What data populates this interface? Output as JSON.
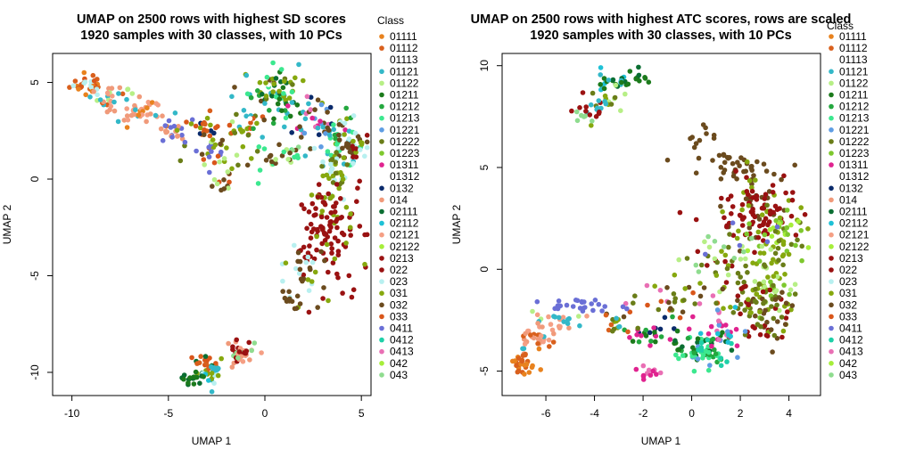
{
  "classes": [
    {
      "name": "01111",
      "color": "#e8821e"
    },
    {
      "name": "01112",
      "color": "#d9601d"
    },
    {
      "name": "01113",
      "color": "#ffffff"
    },
    {
      "name": "01121",
      "color": "#33b8c8"
    },
    {
      "name": "01122",
      "color": "#b7ef86"
    },
    {
      "name": "01211",
      "color": "#1b7a1b"
    },
    {
      "name": "01212",
      "color": "#24a83f"
    },
    {
      "name": "01213",
      "color": "#3ce88f"
    },
    {
      "name": "01221",
      "color": "#5f9de3"
    },
    {
      "name": "01222",
      "color": "#6a7d18"
    },
    {
      "name": "01223",
      "color": "#7ec82e"
    },
    {
      "name": "01311",
      "color": "#e0238f"
    },
    {
      "name": "01312",
      "color": "#ffffff"
    },
    {
      "name": "0132",
      "color": "#0a2a6b"
    },
    {
      "name": "014",
      "color": "#f09a7a"
    },
    {
      "name": "02111",
      "color": "#0a6e32"
    },
    {
      "name": "02112",
      "color": "#1ec1d6"
    },
    {
      "name": "02121",
      "color": "#f59f84"
    },
    {
      "name": "02122",
      "color": "#a6ee3a"
    },
    {
      "name": "0213",
      "color": "#9b1212"
    },
    {
      "name": "022",
      "color": "#991111"
    },
    {
      "name": "023",
      "color": "#b8f0f0"
    },
    {
      "name": "031",
      "color": "#86a80e"
    },
    {
      "name": "032",
      "color": "#6b4b1e"
    },
    {
      "name": "033",
      "color": "#d9561a"
    },
    {
      "name": "0411",
      "color": "#6a6fd6"
    },
    {
      "name": "0412",
      "color": "#1fd0a8"
    },
    {
      "name": "0413",
      "color": "#e96fb4"
    },
    {
      "name": "042",
      "color": "#a6ee3a"
    },
    {
      "name": "043",
      "color": "#8fdc8f"
    }
  ],
  "chart_data": [
    {
      "type": "scatter",
      "title": "UMAP on 2500 rows with highest SD scores",
      "subtitle": "1920 samples with 30 classes, with 10 PCs",
      "xlabel": "UMAP 1",
      "ylabel": "UMAP 2",
      "xlim": [
        -11,
        5.5
      ],
      "ylim": [
        -11.2,
        6.5
      ],
      "xticks": [
        -10,
        -5,
        0,
        5
      ],
      "yticks": [
        -10,
        -5,
        0,
        5
      ],
      "legend_title": "Class",
      "legend_position": "right",
      "clusters": [
        {
          "x": -9.2,
          "y": 4.9,
          "sx": 0.45,
          "sy": 0.3,
          "n": 30,
          "cls": [
            0,
            1,
            24,
            21
          ]
        },
        {
          "x": -8.0,
          "y": 4.2,
          "sx": 0.6,
          "sy": 0.3,
          "n": 30,
          "cls": [
            1,
            14,
            3,
            4,
            17
          ]
        },
        {
          "x": -6.5,
          "y": 3.4,
          "sx": 0.7,
          "sy": 0.3,
          "n": 35,
          "cls": [
            14,
            17,
            3,
            0
          ]
        },
        {
          "x": -4.7,
          "y": 2.5,
          "sx": 0.4,
          "sy": 0.3,
          "n": 22,
          "cls": [
            25,
            14
          ]
        },
        {
          "x": -3.2,
          "y": 2.8,
          "sx": 0.5,
          "sy": 0.4,
          "n": 20,
          "cls": [
            1,
            13,
            24,
            22
          ]
        },
        {
          "x": -2.5,
          "y": 1.3,
          "sx": 0.8,
          "sy": 0.6,
          "n": 45,
          "cls": [
            22,
            24,
            9,
            25,
            23,
            4
          ]
        },
        {
          "x": -2.2,
          "y": -0.3,
          "sx": 0.3,
          "sy": 0.3,
          "n": 8,
          "cls": [
            4,
            23
          ]
        },
        {
          "x": -1.0,
          "y": 2.8,
          "sx": 0.5,
          "sy": 0.5,
          "n": 25,
          "cls": [
            22,
            24,
            3,
            9
          ]
        },
        {
          "x": 0.0,
          "y": 4.3,
          "sx": 0.8,
          "sy": 1.0,
          "n": 60,
          "cls": [
            6,
            7,
            3,
            12,
            22,
            15,
            23
          ]
        },
        {
          "x": 1.0,
          "y": 4.2,
          "sx": 0.6,
          "sy": 0.7,
          "n": 30,
          "cls": [
            9,
            22,
            5,
            7
          ]
        },
        {
          "x": 0.5,
          "y": 1.2,
          "sx": 0.8,
          "sy": 0.5,
          "n": 25,
          "cls": [
            23,
            4,
            29,
            7
          ]
        },
        {
          "x": 2.5,
          "y": 3.0,
          "sx": 0.7,
          "sy": 0.6,
          "n": 40,
          "cls": [
            11,
            8,
            3,
            13,
            23,
            27
          ]
        },
        {
          "x": 3.8,
          "y": 2.0,
          "sx": 0.7,
          "sy": 0.7,
          "n": 55,
          "cls": [
            23,
            22,
            6,
            3,
            7,
            21
          ]
        },
        {
          "x": 4.5,
          "y": 1.7,
          "sx": 0.4,
          "sy": 0.5,
          "n": 35,
          "cls": [
            23,
            22,
            21,
            20
          ]
        },
        {
          "x": 3.5,
          "y": 0.2,
          "sx": 0.5,
          "sy": 0.6,
          "n": 30,
          "cls": [
            22,
            21,
            9
          ]
        },
        {
          "x": 3.3,
          "y": -2.5,
          "sx": 0.9,
          "sy": 1.3,
          "n": 120,
          "cls": [
            19,
            20,
            19,
            20,
            22
          ]
        },
        {
          "x": 2.0,
          "y": -5.0,
          "sx": 0.6,
          "sy": 0.9,
          "n": 30,
          "cls": [
            23,
            22,
            21
          ]
        },
        {
          "x": 1.3,
          "y": -6.3,
          "sx": 0.3,
          "sy": 0.3,
          "n": 10,
          "cls": [
            23
          ]
        },
        {
          "x": -3.0,
          "y": -9.6,
          "sx": 0.35,
          "sy": 0.3,
          "n": 25,
          "cls": [
            15,
            1,
            24,
            22
          ]
        },
        {
          "x": -2.7,
          "y": -10.1,
          "sx": 0.3,
          "sy": 0.3,
          "n": 20,
          "cls": [
            3,
            16,
            21,
            22
          ]
        },
        {
          "x": -1.2,
          "y": -9.0,
          "sx": 0.45,
          "sy": 0.3,
          "n": 35,
          "cls": [
            19,
            20,
            14,
            17,
            29
          ]
        },
        {
          "x": -3.8,
          "y": -10.3,
          "sx": 0.3,
          "sy": 0.15,
          "n": 18,
          "cls": [
            5,
            15
          ]
        }
      ]
    },
    {
      "type": "scatter",
      "title": "UMAP on 2500 rows with highest ATC scores, rows are scaled",
      "subtitle": "1920 samples with 30 classes, with 10 PCs",
      "xlabel": "UMAP 1",
      "ylabel": "UMAP 2",
      "xlim": [
        -7.8,
        5.3
      ],
      "ylim": [
        -6.2,
        10.6
      ],
      "xticks": [
        -6,
        -4,
        -2,
        0,
        2,
        4
      ],
      "yticks": [
        -5,
        0,
        5,
        10
      ],
      "legend_title": "Class",
      "legend_position": "right",
      "clusters": [
        {
          "x": -3.2,
          "y": 9.2,
          "sx": 0.35,
          "sy": 0.2,
          "n": 25,
          "cls": [
            3,
            16,
            5,
            15
          ]
        },
        {
          "x": -2.2,
          "y": 9.4,
          "sx": 0.2,
          "sy": 0.2,
          "n": 10,
          "cls": [
            15,
            5
          ]
        },
        {
          "x": -3.5,
          "y": 8.3,
          "sx": 0.35,
          "sy": 0.3,
          "n": 12,
          "cls": [
            4,
            22,
            9
          ]
        },
        {
          "x": -4.0,
          "y": 8.0,
          "sx": 0.3,
          "sy": 0.3,
          "n": 15,
          "cls": [
            19,
            3
          ]
        },
        {
          "x": -4.3,
          "y": 7.4,
          "sx": 0.3,
          "sy": 0.2,
          "n": 10,
          "cls": [
            29,
            22,
            19
          ]
        },
        {
          "x": 0.5,
          "y": 6.5,
          "sx": 0.4,
          "sy": 0.4,
          "n": 10,
          "cls": [
            23
          ]
        },
        {
          "x": 2.0,
          "y": 5.0,
          "sx": 0.9,
          "sy": 0.4,
          "n": 40,
          "cls": [
            23
          ]
        },
        {
          "x": 2.8,
          "y": 2.8,
          "sx": 0.9,
          "sy": 0.9,
          "n": 110,
          "cls": [
            20,
            19,
            20,
            23,
            22
          ]
        },
        {
          "x": 3.8,
          "y": 1.7,
          "sx": 0.6,
          "sy": 0.6,
          "n": 40,
          "cls": [
            22,
            28,
            10,
            9
          ]
        },
        {
          "x": 3.0,
          "y": -0.5,
          "sx": 0.7,
          "sy": 1.0,
          "n": 80,
          "cls": [
            22,
            9,
            10,
            4
          ]
        },
        {
          "x": 3.0,
          "y": -2.2,
          "sx": 0.6,
          "sy": 0.7,
          "n": 70,
          "cls": [
            23,
            22,
            9,
            20
          ]
        },
        {
          "x": 1.0,
          "y": 0.5,
          "sx": 1.0,
          "sy": 0.8,
          "n": 40,
          "cls": [
            9,
            20,
            22,
            25,
            4,
            29
          ]
        },
        {
          "x": -0.8,
          "y": -1.5,
          "sx": 0.9,
          "sy": 0.6,
          "n": 40,
          "cls": [
            24,
            9,
            22,
            23,
            27
          ]
        },
        {
          "x": -1.5,
          "y": -3.2,
          "sx": 0.7,
          "sy": 0.5,
          "n": 30,
          "cls": [
            13,
            5,
            6,
            11
          ]
        },
        {
          "x": 0.3,
          "y": -3.8,
          "sx": 0.6,
          "sy": 0.4,
          "n": 45,
          "cls": [
            5,
            6,
            7,
            15
          ]
        },
        {
          "x": 0.9,
          "y": -4.2,
          "sx": 0.5,
          "sy": 0.4,
          "n": 35,
          "cls": [
            7,
            26,
            6,
            8
          ]
        },
        {
          "x": 1.3,
          "y": -3.0,
          "sx": 0.5,
          "sy": 0.4,
          "n": 25,
          "cls": [
            27,
            11,
            8,
            16
          ]
        },
        {
          "x": -1.7,
          "y": -5.1,
          "sx": 0.25,
          "sy": 0.25,
          "n": 12,
          "cls": [
            11,
            27
          ]
        },
        {
          "x": -4.5,
          "y": -1.8,
          "sx": 0.7,
          "sy": 0.2,
          "n": 25,
          "cls": [
            25
          ]
        },
        {
          "x": -5.5,
          "y": -2.6,
          "sx": 0.5,
          "sy": 0.25,
          "n": 25,
          "cls": [
            14,
            17,
            3,
            4
          ]
        },
        {
          "x": -6.4,
          "y": -3.5,
          "sx": 0.5,
          "sy": 0.3,
          "n": 30,
          "cls": [
            3,
            14,
            1,
            17
          ]
        },
        {
          "x": -6.9,
          "y": -4.6,
          "sx": 0.25,
          "sy": 0.4,
          "n": 30,
          "cls": [
            0,
            1
          ]
        },
        {
          "x": -3.0,
          "y": -2.8,
          "sx": 0.5,
          "sy": 0.3,
          "n": 15,
          "cls": [
            9,
            22,
            3,
            1
          ]
        }
      ]
    }
  ]
}
